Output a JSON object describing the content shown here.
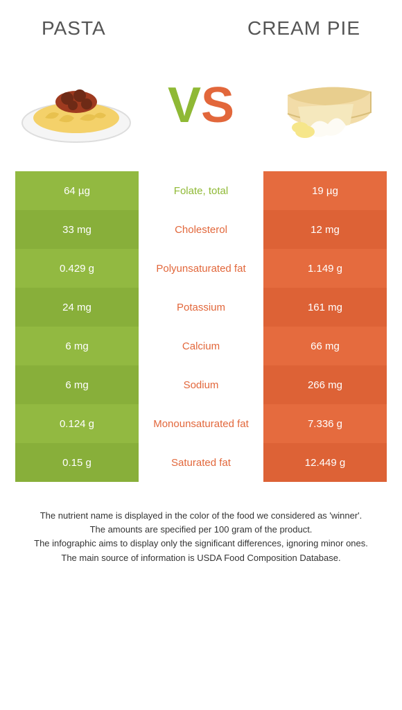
{
  "titles": {
    "left": "Pasta",
    "right": "Cream Pie"
  },
  "vs": {
    "v": "V",
    "s": "S"
  },
  "colors": {
    "green": "#92b941",
    "green_alt": "#88af3a",
    "orange": "#e56b3e",
    "orange_alt": "#dd6236",
    "text_green": "#8fb935",
    "text_orange": "#e2673b"
  },
  "rows": [
    {
      "left": "64 µg",
      "name": "Folate, total",
      "right": "19 µg",
      "winner": "green"
    },
    {
      "left": "33 mg",
      "name": "Cholesterol",
      "right": "12 mg",
      "winner": "orange"
    },
    {
      "left": "0.429 g",
      "name": "Polyunsaturated fat",
      "right": "1.149 g",
      "winner": "orange"
    },
    {
      "left": "24 mg",
      "name": "Potassium",
      "right": "161 mg",
      "winner": "orange"
    },
    {
      "left": "6 mg",
      "name": "Calcium",
      "right": "66 mg",
      "winner": "orange"
    },
    {
      "left": "6 mg",
      "name": "Sodium",
      "right": "266 mg",
      "winner": "orange"
    },
    {
      "left": "0.124 g",
      "name": "Monounsaturated fat",
      "right": "7.336 g",
      "winner": "orange"
    },
    {
      "left": "0.15 g",
      "name": "Saturated fat",
      "right": "12.449 g",
      "winner": "orange"
    }
  ],
  "footer": [
    "The nutrient name is displayed in the color of the food we considered as 'winner'.",
    "The amounts are specified per 100 gram of the product.",
    "The infographic aims to display only the significant differences, ignoring minor ones.",
    "The main source of information is USDA Food Composition Database."
  ]
}
